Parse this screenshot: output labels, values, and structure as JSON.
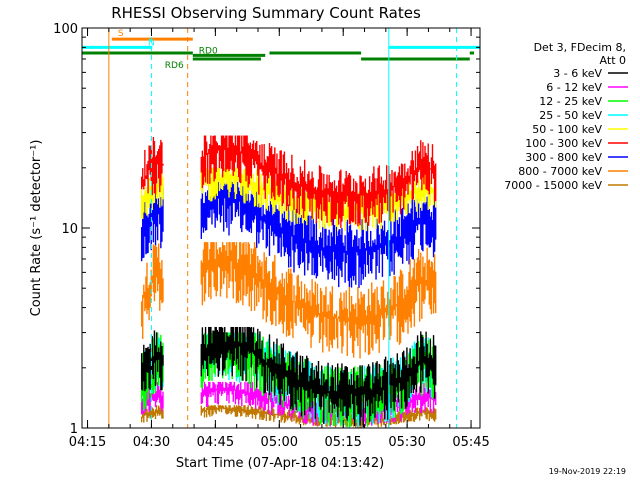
{
  "chart_data": {
    "type": "line",
    "title": "RHESSI Observing Summary Count Rates",
    "xlabel": "Start Time (07-Apr-18 04:13:42)",
    "ylabel": "Count Rate (s⁻¹ detector⁻¹)",
    "y_scale": "log",
    "ylim": [
      1,
      100
    ],
    "xlim_minutes": [
      0,
      93.4
    ],
    "x_ticks": [
      {
        "label": "04:15",
        "minute": 1.3
      },
      {
        "label": "04:30",
        "minute": 16.3
      },
      {
        "label": "04:45",
        "minute": 31.3
      },
      {
        "label": "05:00",
        "minute": 46.3
      },
      {
        "label": "05:15",
        "minute": 61.3
      },
      {
        "label": "05:30",
        "minute": 76.3
      },
      {
        "label": "05:45",
        "minute": 91.3
      }
    ],
    "y_ticks": [
      "1",
      "10",
      "100"
    ],
    "grid": false,
    "legend_placement": "right",
    "legend_header": [
      "Det 3, FDecim 8,",
      "Att 0"
    ],
    "series": [
      {
        "name": "3 - 6 keV",
        "color": "#000000",
        "band": [
          1.0,
          3.2
        ]
      },
      {
        "name": "6 - 12 keV",
        "color": "#ff00ff",
        "band": [
          1.0,
          1.7
        ]
      },
      {
        "name": "12 - 25 keV",
        "color": "#00ff00",
        "band": [
          1.0,
          3.0
        ]
      },
      {
        "name": "25 - 50 keV",
        "color": "#00ffff",
        "band": [
          1.0,
          3.0
        ]
      },
      {
        "name": "50 - 100 keV",
        "color": "#ffff00",
        "band": [
          9.5,
          20.0
        ]
      },
      {
        "name": "100 - 300 keV",
        "color": "#ff0000",
        "band": [
          10.0,
          29.0
        ]
      },
      {
        "name": "300 - 800 keV",
        "color": "#0000ff",
        "band": [
          5.0,
          17.0
        ]
      },
      {
        "name": "800 - 7000 keV",
        "color": "#ff8000",
        "band": [
          2.2,
          8.5
        ]
      },
      {
        "name": "7000 - 15000 keV",
        "color": "#c07800",
        "band": [
          1.0,
          1.3
        ]
      }
    ],
    "data_intervals_minutes": [
      [
        14.0,
        19.0
      ],
      [
        28.0,
        83.0
      ]
    ],
    "envelope_100_300_keV": {
      "minute": [
        14,
        16,
        18,
        19,
        28,
        31,
        34,
        37,
        40,
        43,
        46,
        50,
        55,
        60,
        65,
        70,
        75,
        78,
        80,
        83
      ],
      "value": [
        16,
        21,
        24,
        22,
        24,
        27,
        27,
        26,
        24,
        21,
        19,
        16,
        13,
        12,
        12,
        13,
        16,
        20,
        22,
        20
      ]
    },
    "flag_bars": [
      {
        "label": "S",
        "color": "#ff8000",
        "start": 7.0,
        "end": 26.0,
        "level": 88
      },
      {
        "label": "N",
        "color": "#00ffff",
        "start": 0.0,
        "end": 16.5,
        "level": 80
      },
      {
        "label": "",
        "color": "#00ffff",
        "start": 72.0,
        "end": 93.4,
        "level": 80
      },
      {
        "label": "RD0",
        "color": "#008000",
        "start": 26.0,
        "end": 43.0,
        "level": 73
      },
      {
        "label": "",
        "color": "#008000",
        "start": 0.0,
        "end": 26.0,
        "level": 75
      },
      {
        "label": "",
        "color": "#008000",
        "start": 44.0,
        "end": 65.5,
        "level": 75
      },
      {
        "label": "",
        "color": "#008000",
        "start": 91.0,
        "end": 92.0,
        "level": 75
      },
      {
        "label": "RD6",
        "color": "#008000",
        "start": 26.0,
        "end": 42.0,
        "level": 70
      },
      {
        "label": "",
        "color": "#008000",
        "start": 65.5,
        "end": 91.0,
        "level": 70
      }
    ],
    "vertical_markers": [
      {
        "minute": 6.3,
        "color": "#ff8000",
        "style": "solid"
      },
      {
        "minute": 16.3,
        "color": "#00ffff",
        "style": "dashed"
      },
      {
        "minute": 24.8,
        "color": "#ff8000",
        "style": "dashed"
      },
      {
        "minute": 72.0,
        "color": "#00ffff",
        "style": "solid"
      },
      {
        "minute": 87.9,
        "color": "#00ffff",
        "style": "dashed"
      }
    ]
  },
  "footer": {
    "timestamp": "19-Nov-2019 22:19"
  }
}
